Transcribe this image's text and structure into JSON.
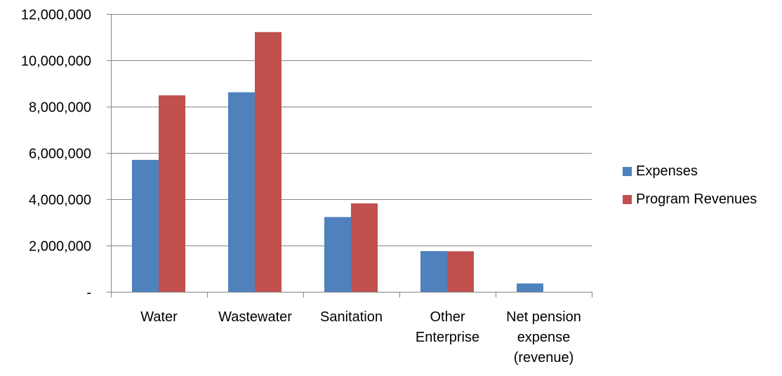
{
  "chart_data": {
    "type": "bar",
    "categories": [
      "Water",
      "Wastewater",
      "Sanitation",
      "Other Enterprise",
      "Net pension expense (revenue)"
    ],
    "category_lines": [
      [
        "Water"
      ],
      [
        "Wastewater"
      ],
      [
        "Sanitation"
      ],
      [
        "Other",
        "Enterprise"
      ],
      [
        "Net pension",
        "expense",
        "(revenue)"
      ]
    ],
    "series": [
      {
        "name": "Expenses",
        "color": "#4f81bd",
        "values": [
          5700000,
          8620000,
          3230000,
          1760000,
          360000
        ]
      },
      {
        "name": "Program Revenues",
        "color": "#c0504d",
        "values": [
          8490000,
          11220000,
          3820000,
          1750000,
          0
        ]
      }
    ],
    "ylim": [
      0,
      12000000
    ],
    "y_ticks": [
      0,
      2000000,
      4000000,
      6000000,
      8000000,
      10000000,
      12000000
    ],
    "y_tick_labels": [
      "-",
      "2,000,000",
      "4,000,000",
      "6,000,000",
      "8,000,000",
      "10,000,000",
      "12,000,000"
    ],
    "grid": true,
    "legend_position": "right"
  }
}
